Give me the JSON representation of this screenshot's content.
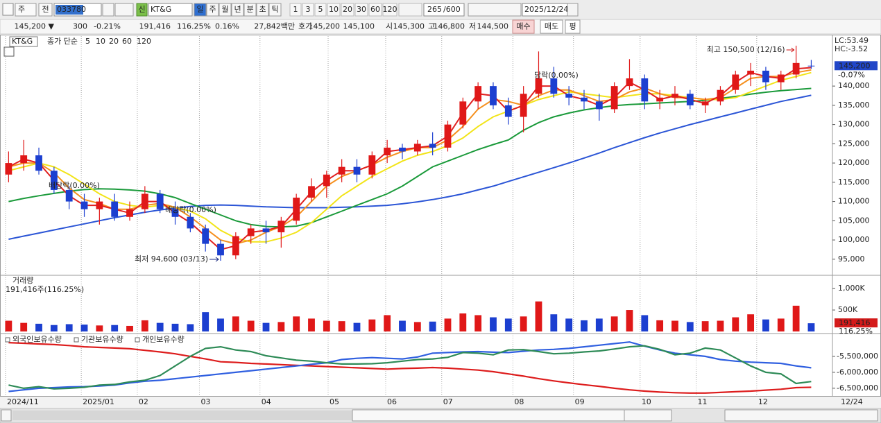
{
  "toolbar": {
    "mode": "주",
    "prev": "전",
    "code": "033780",
    "badge": "신",
    "name": "KT&G",
    "periods": [
      "일",
      "주",
      "월",
      "년",
      "분",
      "초",
      "틱"
    ],
    "intervals": [
      "1",
      "3",
      "5",
      "10",
      "20",
      "30",
      "60",
      "120"
    ],
    "count": "265",
    "max_count": "/600",
    "date": "2025/12/24"
  },
  "info_bar": {
    "price": "145,200 ▼",
    "change": "300",
    "change_rate": "-0.21%",
    "volume": "191,416",
    "volume_ratio": "116.25%",
    "turnover_rate": "0.16%",
    "amount": "27,842백만",
    "ask_label": "호가",
    "ask": "145,200",
    "bid": "145,100",
    "open_label": "시",
    "open": "145,300",
    "high_label": "고",
    "high": "146,800",
    "low_label": "저",
    "low": "144,500",
    "buy": "매수",
    "sell": "매도",
    "avg": "평"
  },
  "chart_data": [
    {
      "type": "candlestick",
      "title": "KT&G",
      "legend_title": "종가 단순",
      "up_color": "#e01818",
      "down_color": "#1c3fd0",
      "xlim": [
        -0.2,
        54.4
      ],
      "xticks": [
        {
          "value": -0.2,
          "label": "2024/11"
        },
        {
          "value": 4.8,
          "label": "2025/01"
        },
        {
          "value": 8.5,
          "label": "02"
        },
        {
          "value": 12.6,
          "label": "03"
        },
        {
          "value": 16.6,
          "label": "04"
        },
        {
          "value": 21.1,
          "label": "05"
        },
        {
          "value": 24.9,
          "label": "06"
        },
        {
          "value": 28.6,
          "label": "07"
        },
        {
          "value": 33.3,
          "label": "08"
        },
        {
          "value": 37.3,
          "label": "09"
        },
        {
          "value": 41.7,
          "label": "10"
        },
        {
          "value": 45.4,
          "label": "11"
        },
        {
          "value": 49.4,
          "label": "12"
        }
      ],
      "cursor_date": "12/24",
      "ylim": [
        91000,
        153000
      ],
      "yticks": [
        {
          "value": 95000,
          "label": "95,000"
        },
        {
          "value": 100000,
          "label": "100,000"
        },
        {
          "value": 105000,
          "label": "105,000"
        },
        {
          "value": 110000,
          "label": "110,000"
        },
        {
          "value": 115000,
          "label": "115,000"
        },
        {
          "value": 120000,
          "label": "120,000"
        },
        {
          "value": 125000,
          "label": "125,000"
        },
        {
          "value": 130000,
          "label": "130,000"
        },
        {
          "value": 135000,
          "label": "135,000"
        },
        {
          "value": 140000,
          "label": "140,000"
        }
      ],
      "open": [
        117000,
        120000,
        122000,
        118000,
        113000,
        110000,
        108000,
        110000,
        106000,
        108000,
        112000,
        108000,
        106000,
        103000,
        99000,
        96000,
        101000,
        103000,
        102000,
        105000,
        111000,
        114000,
        117000,
        119000,
        117000,
        122000,
        124000,
        123000,
        125000,
        124000,
        130000,
        136000,
        140000,
        135000,
        132000,
        138000,
        142000,
        138000,
        137000,
        136000,
        134000,
        140000,
        142000,
        136000,
        137000,
        138000,
        135000,
        136000,
        139000,
        143000,
        144000,
        141000,
        143000,
        145300
      ],
      "high": [
        123000,
        126000,
        124000,
        119000,
        114000,
        112000,
        111000,
        112000,
        110000,
        114000,
        113000,
        110000,
        107000,
        104000,
        100000,
        102000,
        104000,
        105000,
        106000,
        112000,
        116000,
        118000,
        121000,
        121000,
        123000,
        126000,
        125000,
        126000,
        128000,
        131000,
        137000,
        141000,
        141000,
        137000,
        140000,
        149000,
        145000,
        140000,
        139000,
        138000,
        141000,
        147000,
        143000,
        139000,
        140000,
        139000,
        137000,
        140000,
        144000,
        146000,
        145000,
        144000,
        150500,
        146800
      ],
      "low": [
        115000,
        118000,
        117000,
        112000,
        108000,
        106000,
        104000,
        105000,
        105000,
        107000,
        107000,
        104000,
        102000,
        97000,
        94600,
        95000,
        99000,
        99000,
        98000,
        104000,
        110000,
        111000,
        115000,
        115000,
        116000,
        120000,
        121000,
        122000,
        122000,
        123000,
        129000,
        134000,
        134000,
        130000,
        128000,
        137000,
        137000,
        135000,
        134000,
        131000,
        133000,
        139000,
        134000,
        134000,
        135000,
        134000,
        133000,
        135000,
        138000,
        140000,
        139000,
        139000,
        142000,
        144500
      ],
      "close": [
        120000,
        122000,
        118000,
        113000,
        110000,
        108000,
        110000,
        106000,
        108000,
        112000,
        108000,
        106000,
        103000,
        99000,
        96000,
        101000,
        103000,
        102000,
        105000,
        111000,
        114000,
        117000,
        119000,
        117000,
        122000,
        124000,
        123000,
        125000,
        124000,
        130000,
        136000,
        140000,
        135000,
        132000,
        138000,
        142000,
        138000,
        137000,
        136000,
        134000,
        140000,
        142000,
        136000,
        137000,
        138000,
        135000,
        136000,
        139000,
        143000,
        144000,
        141000,
        143000,
        146000,
        145200
      ],
      "series": [
        {
          "name": "5",
          "color": "#e02020",
          "values": [
            119000,
            121000,
            120000,
            115500,
            111500,
            109000,
            109000,
            108000,
            107000,
            110000,
            110000,
            107000,
            104500,
            101000,
            97500,
            98500,
            102000,
            102500,
            103500,
            108000,
            112500,
            115500,
            118000,
            118000,
            119500,
            123000,
            123500,
            124000,
            124500,
            127000,
            133000,
            138000,
            137500,
            133500,
            135000,
            140000,
            140000,
            137500,
            136500,
            135000,
            137000,
            141000,
            139000,
            136500,
            137500,
            136500,
            135500,
            137500,
            141000,
            143500,
            142500,
            142000,
            144500,
            144800
          ]
        },
        {
          "name": "10",
          "color": "#f5901e",
          "values": [
            119000,
            120000,
            120000,
            117500,
            113500,
            110500,
            109500,
            108000,
            108000,
            109000,
            109500,
            108500,
            106000,
            103000,
            100000,
            99000,
            100000,
            102000,
            103500,
            106000,
            110000,
            114000,
            116500,
            118000,
            119500,
            121500,
            123000,
            124000,
            124000,
            126000,
            129500,
            134000,
            136500,
            136000,
            135000,
            137500,
            139000,
            139000,
            137500,
            136000,
            136500,
            138500,
            139500,
            138000,
            137000,
            137000,
            136500,
            137000,
            139500,
            142000,
            142500,
            142500,
            143500,
            144200
          ]
        },
        {
          "name": "20",
          "color": "#f2e418",
          "values": [
            118000,
            119000,
            120000,
            119000,
            117000,
            114500,
            112000,
            110000,
            109000,
            108500,
            109000,
            108500,
            107500,
            105500,
            102500,
            100500,
            99500,
            99500,
            100500,
            102000,
            104500,
            108000,
            111500,
            114000,
            116500,
            118500,
            120500,
            122000,
            123000,
            124500,
            126500,
            129500,
            132000,
            133500,
            135000,
            136500,
            137500,
            138500,
            138000,
            137500,
            137000,
            137500,
            138000,
            138000,
            137500,
            137000,
            136500,
            136500,
            137000,
            138500,
            140000,
            141500,
            142500,
            143500
          ]
        },
        {
          "name": "60",
          "color": "#1a9a3a",
          "values": [
            110000,
            110800,
            111500,
            112100,
            112700,
            113100,
            113300,
            113200,
            113000,
            112700,
            112000,
            111000,
            109500,
            108000,
            106500,
            105000,
            104000,
            103500,
            103400,
            103600,
            104500,
            106000,
            107500,
            109000,
            110500,
            112000,
            114000,
            116500,
            119000,
            120500,
            122000,
            123500,
            124800,
            126000,
            128500,
            130500,
            132000,
            133000,
            133800,
            134400,
            134900,
            135200,
            135400,
            135600,
            135800,
            136000,
            136300,
            136800,
            137300,
            137900,
            138400,
            138800,
            139100,
            139400
          ]
        },
        {
          "name": "120",
          "color": "#2b55d6",
          "values": [
            100200,
            101000,
            101800,
            102600,
            103400,
            104200,
            105000,
            105800,
            106500,
            107200,
            107800,
            108300,
            108700,
            109000,
            109100,
            109000,
            108800,
            108600,
            108500,
            108400,
            108400,
            108400,
            108500,
            108600,
            108800,
            109000,
            109400,
            109900,
            110500,
            111200,
            112000,
            113000,
            114000,
            115200,
            116400,
            117600,
            118800,
            120000,
            121300,
            122600,
            124000,
            125300,
            126600,
            127800,
            128900,
            130000,
            131000,
            132000,
            133000,
            134000,
            135000,
            136000,
            136800,
            137600
          ]
        }
      ],
      "current_price": {
        "value": 145200,
        "label": "145,200"
      },
      "current_change": "-0.07%",
      "lc": "LC:53.49",
      "hc": "HC:-3.52",
      "annotations": [
        "최고 150,500 (12/16)",
        "최저 94,600 (03/13)",
        "배당락(0.00%)",
        "배당락(0.00%)",
        "당락(0.00%)"
      ]
    },
    {
      "type": "bar",
      "title": "거래량",
      "summary": "191,416주(116.25%)",
      "ylim": [
        0,
        1260000
      ],
      "yticks": [
        {
          "value": 500000,
          "label": "500K"
        },
        {
          "value": 1000000,
          "label": "1,000K"
        }
      ],
      "values": [
        250000,
        200000,
        180000,
        150000,
        170000,
        160000,
        140000,
        150000,
        130000,
        260000,
        200000,
        180000,
        170000,
        450000,
        300000,
        350000,
        250000,
        200000,
        220000,
        350000,
        300000,
        250000,
        240000,
        200000,
        280000,
        380000,
        250000,
        220000,
        230000,
        300000,
        420000,
        380000,
        330000,
        300000,
        350000,
        700000,
        400000,
        300000,
        260000,
        300000,
        350000,
        500000,
        380000,
        260000,
        250000,
        220000,
        240000,
        250000,
        330000,
        400000,
        280000,
        300000,
        600000,
        191416
      ],
      "last_value_label": "191,416",
      "last_ratio_label": "116.25%"
    },
    {
      "type": "line",
      "ylim": [
        -6720000,
        -4850000
      ],
      "yticks": [
        {
          "value": -5500000,
          "label": "-5,500,000"
        },
        {
          "value": -6000000,
          "label": "-6,000,000"
        },
        {
          "value": -6500000,
          "label": "-6,500,000"
        }
      ],
      "series": [
        {
          "name": "외국인보유수량",
          "color": "#dd1c1c",
          "values": [
            -5070000,
            -5090000,
            -5110000,
            -5130000,
            -5160000,
            -5200000,
            -5220000,
            -5240000,
            -5260000,
            -5310000,
            -5360000,
            -5420000,
            -5500000,
            -5580000,
            -5670000,
            -5690000,
            -5720000,
            -5740000,
            -5760000,
            -5780000,
            -5800000,
            -5820000,
            -5840000,
            -5860000,
            -5880000,
            -5900000,
            -5880000,
            -5870000,
            -5850000,
            -5870000,
            -5900000,
            -5930000,
            -5980000,
            -6050000,
            -6120000,
            -6200000,
            -6270000,
            -6330000,
            -6390000,
            -6440000,
            -6500000,
            -6550000,
            -6590000,
            -6620000,
            -6640000,
            -6650000,
            -6650000,
            -6630000,
            -6610000,
            -6590000,
            -6560000,
            -6530000,
            -6480000,
            -6470000
          ]
        },
        {
          "name": "기관보유수량",
          "color": "#2f5fe0",
          "values": [
            -6600000,
            -6550000,
            -6500000,
            -6480000,
            -6460000,
            -6450000,
            -6430000,
            -6400000,
            -6330000,
            -6280000,
            -6250000,
            -6200000,
            -6150000,
            -6100000,
            -6050000,
            -6000000,
            -5950000,
            -5900000,
            -5850000,
            -5800000,
            -5750000,
            -5700000,
            -5600000,
            -5560000,
            -5540000,
            -5560000,
            -5580000,
            -5520000,
            -5400000,
            -5380000,
            -5360000,
            -5350000,
            -5370000,
            -5380000,
            -5340000,
            -5300000,
            -5280000,
            -5250000,
            -5200000,
            -5150000,
            -5100000,
            -5050000,
            -5180000,
            -5300000,
            -5400000,
            -5450000,
            -5500000,
            -5600000,
            -5650000,
            -5680000,
            -5700000,
            -5720000,
            -5800000,
            -5860000
          ]
        },
        {
          "name": "개인보유수량",
          "color": "#2e8b57",
          "values": [
            -6400000,
            -6500000,
            -6450000,
            -6520000,
            -6500000,
            -6470000,
            -6400000,
            -6380000,
            -6300000,
            -6250000,
            -6100000,
            -5800000,
            -5500000,
            -5250000,
            -5200000,
            -5300000,
            -5350000,
            -5480000,
            -5550000,
            -5620000,
            -5650000,
            -5700000,
            -5740000,
            -5740000,
            -5730000,
            -5700000,
            -5650000,
            -5600000,
            -5580000,
            -5530000,
            -5380000,
            -5400000,
            -5450000,
            -5300000,
            -5290000,
            -5350000,
            -5420000,
            -5400000,
            -5360000,
            -5330000,
            -5270000,
            -5200000,
            -5170000,
            -5280000,
            -5450000,
            -5400000,
            -5240000,
            -5300000,
            -5550000,
            -5800000,
            -6000000,
            -6050000,
            -6350000,
            -6290000
          ]
        }
      ]
    }
  ]
}
